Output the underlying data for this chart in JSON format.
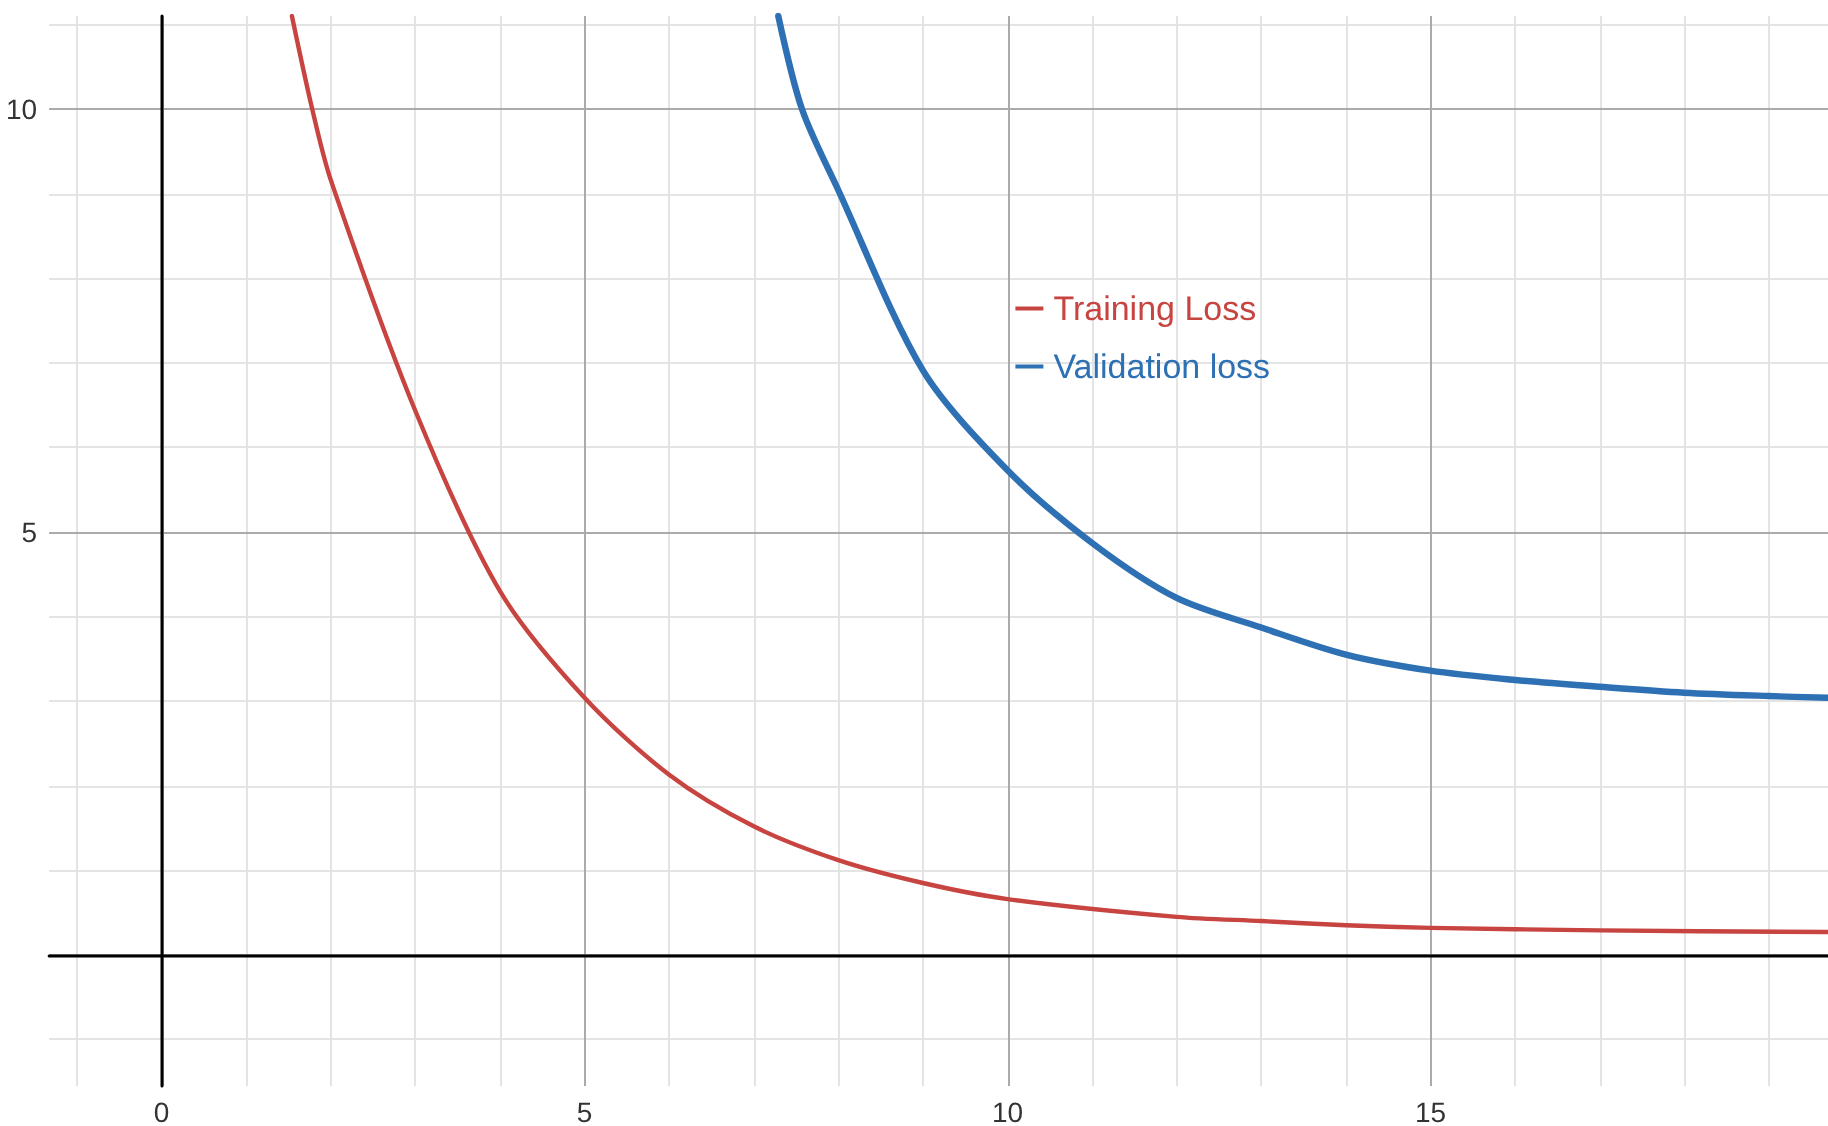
{
  "chart_data": {
    "type": "line",
    "xlim": [
      -1.33,
      19.7
    ],
    "ylim": [
      -1.55,
      11.1
    ],
    "xticks": [
      {
        "value": 0,
        "label": "0"
      },
      5,
      10,
      15
    ],
    "yticks": [
      {
        "value": 0,
        "label": null
      },
      5,
      10
    ],
    "grid": true,
    "legend": "top",
    "marker": "none",
    "line_style": "solid",
    "series": [
      {
        "name": "Training Loss",
        "color": "#c74440",
        "x": [
          1.54,
          1.78,
          2,
          3,
          4,
          5,
          6,
          7,
          8,
          9,
          10,
          12,
          13,
          14,
          15,
          17,
          19.7
        ],
        "values": [
          11.1,
          10,
          9.16,
          6.43,
          4.3,
          3.04,
          2.13,
          1.52,
          1.12,
          0.85,
          0.66,
          0.45,
          0.4,
          0.35,
          0.32,
          0.29,
          0.27
        ]
      },
      {
        "name": "Validation loss",
        "color": "#2d70b3",
        "x": [
          7.29,
          7.57,
          8,
          9,
          10,
          11,
          12,
          13,
          14,
          15,
          16,
          17,
          18,
          19,
          19.7
        ],
        "values": [
          11.1,
          10,
          9.04,
          6.91,
          5.73,
          4.87,
          4.22,
          3.87,
          3.55,
          3.36,
          3.25,
          3.17,
          3.1,
          3.06,
          3.04
        ]
      }
    ]
  }
}
